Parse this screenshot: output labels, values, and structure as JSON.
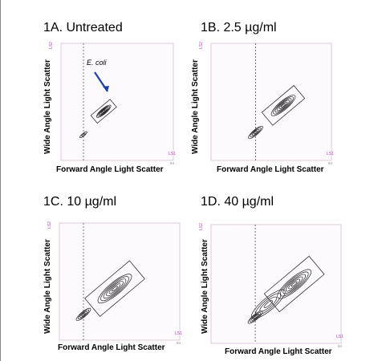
{
  "chart_data": [
    {
      "type": "contour",
      "title": "1A. Untreated",
      "xlabel": "Forward Angle Light Scatter",
      "ylabel": "Wide Angle Light Scatter",
      "axis_tag_x": "LS1",
      "axis_tag_y": "LS2",
      "axis_max_label": "64",
      "annotation": "E. coli",
      "gate_position_fraction": 0.2,
      "populations": [
        {
          "x": 0.38,
          "y": 0.42,
          "spread": "small",
          "peak": "high"
        },
        {
          "x": 0.2,
          "y": 0.22,
          "spread": "tiny",
          "peak": "low"
        }
      ]
    },
    {
      "type": "contour",
      "title": "1B. 2.5 µg/ml",
      "xlabel": "Forward Angle Light Scatter",
      "ylabel": "Wide Angle Light Scatter",
      "axis_tag_x": "LS1",
      "axis_tag_y": "LS2",
      "axis_max_label": "64",
      "gate_position_fraction": 0.37,
      "populations": [
        {
          "x": 0.6,
          "y": 0.47,
          "spread": "medium",
          "peak": "high"
        },
        {
          "x": 0.37,
          "y": 0.24,
          "spread": "small",
          "peak": "medium"
        }
      ]
    },
    {
      "type": "contour",
      "title": "1C. 10 µg/ml",
      "xlabel": "Forward Angle Light Scatter",
      "ylabel": "Wide Angle Light Scatter",
      "axis_tag_x": "LS1",
      "axis_tag_y": "LS2",
      "axis_max_label": "64",
      "gate_position_fraction": 0.2,
      "populations": [
        {
          "x": 0.46,
          "y": 0.44,
          "spread": "large",
          "peak": "high"
        },
        {
          "x": 0.2,
          "y": 0.22,
          "spread": "small",
          "peak": "medium"
        }
      ]
    },
    {
      "type": "contour",
      "title": "1D. 40 µg/ml",
      "xlabel": "Forward Angle Light Scatter",
      "ylabel": "Wide Angle Light Scatter",
      "axis_tag_x": "LS1",
      "axis_tag_y": "LS2",
      "axis_max_label": "64",
      "gate_position_fraction": 0.34,
      "populations": [
        {
          "x": 0.64,
          "y": 0.5,
          "spread": "large",
          "peak": "high"
        },
        {
          "x": 0.44,
          "y": 0.33,
          "spread": "large",
          "peak": "medium"
        },
        {
          "x": 0.34,
          "y": 0.22,
          "spread": "small",
          "peak": "medium"
        }
      ]
    }
  ]
}
